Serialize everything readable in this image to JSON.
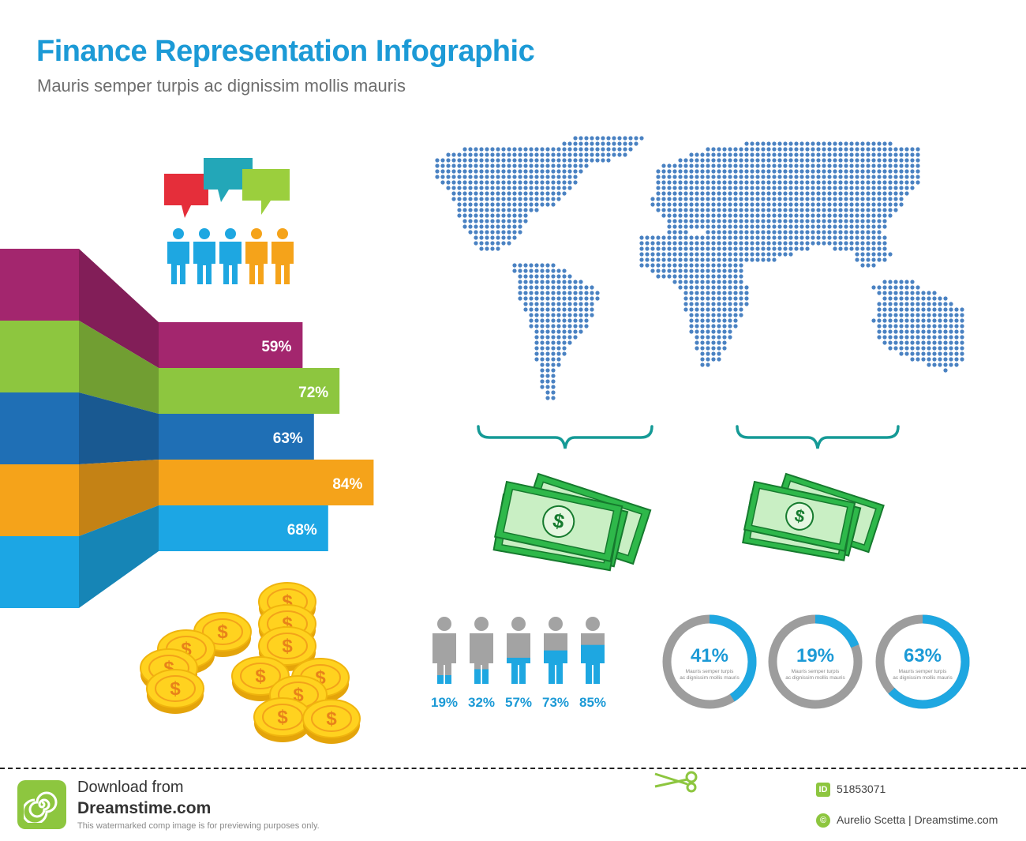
{
  "header": {
    "title": "Finance Representation Infographic",
    "subtitle": "Mauris semper turpis ac dignissim mollis mauris"
  },
  "colors": {
    "title_blue": "#1c9ad6",
    "purple": "#a3266e",
    "green": "#8dc63f",
    "dark_blue": "#1f6fb5",
    "orange": "#f5a31a",
    "light_blue": "#1ca6e4",
    "dot_blue": "#4a82c2",
    "teal": "#159a96",
    "gray": "#9d9d9d"
  },
  "chart_data": [
    {
      "type": "bar",
      "orientation": "horizontal",
      "title": "",
      "categories": [
        "Purple",
        "Green",
        "Dark blue",
        "Orange",
        "Light blue"
      ],
      "values": [
        59,
        72,
        63,
        84,
        68
      ],
      "labels": [
        "59%",
        "72%",
        "63%",
        "84%",
        "68%"
      ],
      "colors": [
        "#a3266e",
        "#8dc63f",
        "#1f6fb5",
        "#f5a31a",
        "#1ca6e4"
      ],
      "xlim": [
        0,
        100
      ]
    },
    {
      "type": "bar",
      "subtype": "people-fill",
      "values": [
        19,
        32,
        57,
        73,
        85
      ],
      "labels": [
        "19%",
        "32%",
        "57%",
        "73%",
        "85%"
      ],
      "ylim": [
        0,
        100
      ]
    },
    {
      "type": "pie",
      "subtype": "donut",
      "values": [
        41,
        19,
        63
      ],
      "labels": [
        "41%",
        "19%",
        "63%"
      ],
      "captions": [
        [
          "Mauris semper turpis",
          "ac dignissim mollis mauris"
        ],
        [
          "Mauris semper turpis",
          "ac dignissim mollis mauris"
        ],
        [
          "Mauris semper turpis",
          "ac dignissim mollis mauris"
        ]
      ]
    }
  ],
  "icons": {
    "speech_bubbles": "speech-bubbles-icon",
    "people_group": "people-group-icon",
    "world_map": "world-map-icon",
    "money_stack": "money-stack-icon",
    "gold_coins": "gold-coins-icon",
    "curly_brace": "curly-brace-icon",
    "scissors": "scissors-icon"
  },
  "footer": {
    "download_text": "Download from",
    "site": "Dreamstime.com",
    "fine_print": "This watermarked comp image is for previewing purposes only.",
    "id_label": "ID",
    "id_value": "51853071",
    "copyright_symbol": "©",
    "author": "Aurelio Scetta | Dreamstime.com"
  }
}
